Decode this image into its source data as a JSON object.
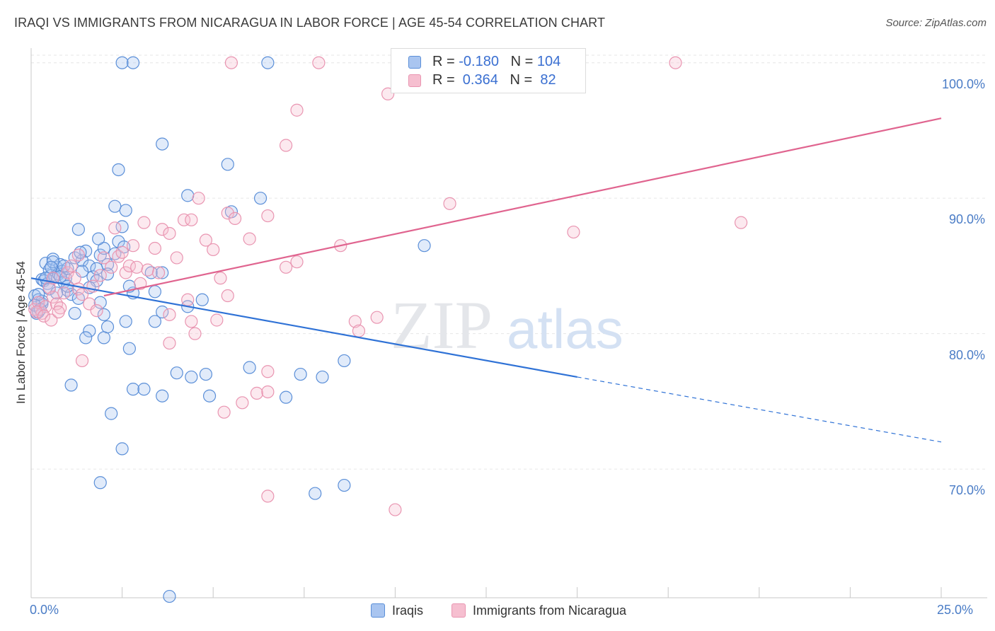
{
  "header": {
    "title": "IRAQI VS IMMIGRANTS FROM NICARAGUA IN LABOR FORCE | AGE 45-54 CORRELATION CHART",
    "source": "Source: ZipAtlas.com"
  },
  "watermark": {
    "part1": "ZIP",
    "part2": "atlas"
  },
  "legend_top": {
    "rows": [
      {
        "r_label": "R = ",
        "r_value": "-0.180",
        "n_label": "N = ",
        "n_value": "104"
      },
      {
        "r_label": "R = ",
        "r_value": " 0.364",
        "n_label": "N = ",
        "n_value": " 82"
      }
    ]
  },
  "legend_bottom": {
    "items": [
      "Iraqis",
      "Immigrants from Nicaragua"
    ]
  },
  "colors": {
    "iraqis_fill": "#a9c5f0",
    "iraqis_stroke": "#5b8fd8",
    "iraqis_line": "#2f72d6",
    "nicaragua_fill": "#f6bfd0",
    "nicaragua_stroke": "#e995b1",
    "nicaragua_line": "#e0648f",
    "axis_text": "#4a7cc6",
    "grid": "#e6e6e6"
  },
  "chart_data": {
    "type": "scatter",
    "title": "IRAQI VS IMMIGRANTS FROM NICARAGUA IN LABOR FORCE | AGE 45-54 CORRELATION CHART",
    "xlabel": "",
    "ylabel": "In Labor Force | Age 45-54",
    "xlim": [
      0,
      25
    ],
    "ylim": [
      60.5,
      101.5
    ],
    "x_tick_labels": [
      "0.0%",
      "25.0%"
    ],
    "y_tick_labels": [
      "100.0%",
      "90.0%",
      "80.0%",
      "70.0%"
    ],
    "y_ticks": [
      100,
      90,
      80,
      70
    ],
    "grid": true,
    "legend_placement": "top-center",
    "series": [
      {
        "name": "Iraqis",
        "stats": {
          "R": -0.18,
          "N": 104
        },
        "trend": {
          "x0": 0.0,
          "y0": 84.1,
          "x1": 15.0,
          "y1": 76.8,
          "dashed_to_x": 25.0,
          "dashed_to_y": 72.0
        },
        "points": [
          [
            0.1,
            82.8
          ],
          [
            0.2,
            82.5
          ],
          [
            0.15,
            81.5
          ],
          [
            0.3,
            82.2
          ],
          [
            0.3,
            84.0
          ],
          [
            0.4,
            85.2
          ],
          [
            0.5,
            84.7
          ],
          [
            0.6,
            85.5
          ],
          [
            0.7,
            84.9
          ],
          [
            0.8,
            85.1
          ],
          [
            0.35,
            83.9
          ],
          [
            0.45,
            83.7
          ],
          [
            0.55,
            84.3
          ],
          [
            0.65,
            84.2
          ],
          [
            0.75,
            84.4
          ],
          [
            0.85,
            84.6
          ],
          [
            0.9,
            83.8
          ],
          [
            1.0,
            83.2
          ],
          [
            1.1,
            82.9
          ],
          [
            0.95,
            84.1
          ],
          [
            1.2,
            81.5
          ],
          [
            1.3,
            82.6
          ],
          [
            1.4,
            85.4
          ],
          [
            1.5,
            86.1
          ],
          [
            1.6,
            85.0
          ],
          [
            1.7,
            84.2
          ],
          [
            1.8,
            83.9
          ],
          [
            1.9,
            85.8
          ],
          [
            2.0,
            86.3
          ],
          [
            2.1,
            85.1
          ],
          [
            1.3,
            87.7
          ],
          [
            1.85,
            87.0
          ],
          [
            2.5,
            87.9
          ],
          [
            2.4,
            86.8
          ],
          [
            2.3,
            89.4
          ],
          [
            2.6,
            89.1
          ],
          [
            2.4,
            92.1
          ],
          [
            3.6,
            94.0
          ],
          [
            4.3,
            90.2
          ],
          [
            5.4,
            92.5
          ],
          [
            5.5,
            89.0
          ],
          [
            6.3,
            90.0
          ],
          [
            2.5,
            100.0
          ],
          [
            2.8,
            100.0
          ],
          [
            6.5,
            100.0
          ],
          [
            1.6,
            80.2
          ],
          [
            1.5,
            79.7
          ],
          [
            2.0,
            79.7
          ],
          [
            2.1,
            80.5
          ],
          [
            2.6,
            80.9
          ],
          [
            2.7,
            78.9
          ],
          [
            3.4,
            80.9
          ],
          [
            3.6,
            81.6
          ],
          [
            3.4,
            83.1
          ],
          [
            2.8,
            83.0
          ],
          [
            2.7,
            83.5
          ],
          [
            4.3,
            82.0
          ],
          [
            4.7,
            82.5
          ],
          [
            1.1,
            76.2
          ],
          [
            2.8,
            75.9
          ],
          [
            3.1,
            75.9
          ],
          [
            3.6,
            75.4
          ],
          [
            4.0,
            77.1
          ],
          [
            4.4,
            76.8
          ],
          [
            4.8,
            77.0
          ],
          [
            4.9,
            75.4
          ],
          [
            6.0,
            77.5
          ],
          [
            7.0,
            75.3
          ],
          [
            7.4,
            77.0
          ],
          [
            8.0,
            76.8
          ],
          [
            8.6,
            78.0
          ],
          [
            2.2,
            74.1
          ],
          [
            2.5,
            71.5
          ],
          [
            1.9,
            69.0
          ],
          [
            7.8,
            68.2
          ],
          [
            8.6,
            68.8
          ],
          [
            3.8,
            60.6
          ],
          [
            10.8,
            86.5
          ],
          [
            0.2,
            81.6
          ],
          [
            0.3,
            82.4
          ],
          [
            0.5,
            83.3
          ],
          [
            0.6,
            85.3
          ],
          [
            0.8,
            84.2
          ],
          [
            1.0,
            84.8
          ],
          [
            1.2,
            85.6
          ],
          [
            1.4,
            84.6
          ],
          [
            1.6,
            83.4
          ],
          [
            1.8,
            84.8
          ],
          [
            2.1,
            84.4
          ],
          [
            2.3,
            85.9
          ],
          [
            2.0,
            81.4
          ],
          [
            3.3,
            84.5
          ],
          [
            1.9,
            82.3
          ],
          [
            0.4,
            84.1
          ],
          [
            0.7,
            83.0
          ],
          [
            1.0,
            83.5
          ],
          [
            0.2,
            82.9
          ],
          [
            0.1,
            82.1
          ],
          [
            0.55,
            84.9
          ],
          [
            1.35,
            86.0
          ],
          [
            2.55,
            86.4
          ],
          [
            0.9,
            85.0
          ],
          [
            3.6,
            84.5
          ],
          [
            0.25,
            81.8
          ]
        ]
      },
      {
        "name": "Immigrants from Nicaragua",
        "stats": {
          "R": 0.364,
          "N": 82
        },
        "trend": {
          "x0": 2.0,
          "y0": 82.8,
          "x1": 25.0,
          "y1": 95.9
        },
        "points": [
          [
            0.1,
            81.8
          ],
          [
            0.2,
            82.3
          ],
          [
            0.3,
            81.5
          ],
          [
            0.4,
            82.0
          ],
          [
            0.5,
            83.4
          ],
          [
            0.6,
            82.7
          ],
          [
            0.7,
            82.2
          ],
          [
            0.8,
            81.9
          ],
          [
            0.15,
            81.6
          ],
          [
            0.35,
            81.3
          ],
          [
            0.55,
            81.0
          ],
          [
            0.75,
            81.6
          ],
          [
            0.9,
            83.0
          ],
          [
            1.0,
            84.5
          ],
          [
            1.1,
            85.0
          ],
          [
            1.2,
            84.1
          ],
          [
            1.3,
            83.3
          ],
          [
            1.4,
            82.9
          ],
          [
            1.6,
            82.2
          ],
          [
            1.8,
            81.7
          ],
          [
            1.9,
            84.3
          ],
          [
            2.0,
            85.6
          ],
          [
            2.2,
            84.9
          ],
          [
            2.4,
            85.7
          ],
          [
            2.5,
            86.0
          ],
          [
            2.6,
            84.5
          ],
          [
            2.7,
            85.0
          ],
          [
            2.8,
            86.5
          ],
          [
            2.9,
            84.9
          ],
          [
            3.0,
            83.7
          ],
          [
            3.2,
            84.7
          ],
          [
            3.4,
            86.3
          ],
          [
            3.6,
            87.7
          ],
          [
            3.8,
            87.4
          ],
          [
            4.0,
            85.6
          ],
          [
            4.2,
            88.4
          ],
          [
            4.4,
            88.4
          ],
          [
            4.6,
            90.0
          ],
          [
            4.8,
            86.9
          ],
          [
            5.0,
            86.2
          ],
          [
            5.2,
            84.1
          ],
          [
            5.4,
            88.9
          ],
          [
            5.6,
            88.5
          ],
          [
            6.0,
            87.0
          ],
          [
            6.5,
            88.7
          ],
          [
            7.0,
            84.9
          ],
          [
            7.3,
            85.3
          ],
          [
            8.5,
            86.5
          ],
          [
            11.5,
            89.6
          ],
          [
            14.9,
            87.5
          ],
          [
            19.5,
            88.2
          ],
          [
            3.1,
            88.2
          ],
          [
            2.3,
            87.8
          ],
          [
            1.3,
            85.8
          ],
          [
            0.6,
            84.1
          ],
          [
            1.7,
            83.5
          ],
          [
            3.5,
            84.5
          ],
          [
            4.3,
            82.5
          ],
          [
            5.4,
            82.8
          ],
          [
            3.8,
            81.4
          ],
          [
            3.8,
            79.3
          ],
          [
            4.4,
            80.9
          ],
          [
            4.5,
            80.0
          ],
          [
            5.1,
            81.0
          ],
          [
            8.9,
            80.9
          ],
          [
            9.5,
            81.2
          ],
          [
            9.0,
            80.2
          ],
          [
            1.4,
            78.0
          ],
          [
            6.5,
            77.2
          ],
          [
            6.2,
            75.6
          ],
          [
            6.5,
            75.7
          ],
          [
            5.8,
            74.9
          ],
          [
            5.3,
            74.2
          ],
          [
            6.5,
            68.0
          ],
          [
            10.0,
            67.0
          ],
          [
            5.5,
            100.0
          ],
          [
            7.9,
            100.0
          ],
          [
            13.9,
            100.0
          ],
          [
            17.7,
            100.0
          ],
          [
            9.8,
            97.7
          ],
          [
            7.3,
            96.5
          ],
          [
            7.0,
            93.9
          ]
        ]
      }
    ]
  }
}
